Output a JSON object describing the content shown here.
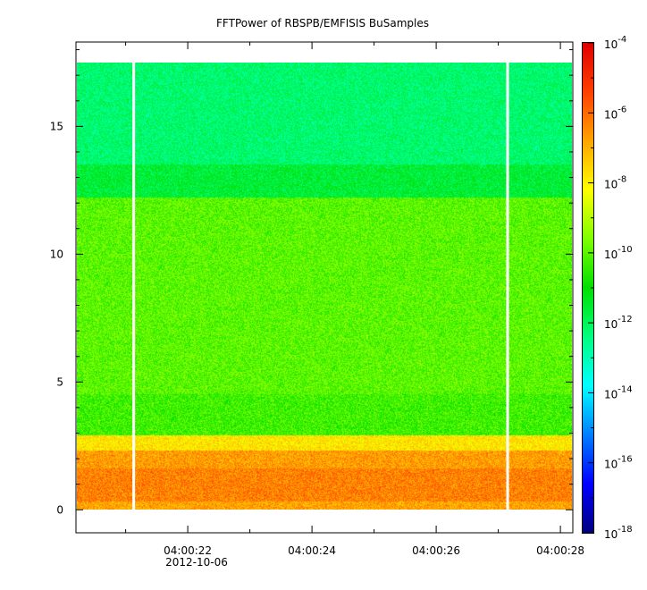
{
  "chart_data": {
    "type": "heatmap",
    "title": "FFTPower of RBSPB/EMFISIS  BuSamples",
    "xlabel": "",
    "ylabel": "",
    "x_ticks": [
      "04:00:22",
      "04:00:24",
      "04:00:26",
      "04:00:28"
    ],
    "x_tick_values": [
      22,
      24,
      26,
      28
    ],
    "x_date_label": "2012-10-06",
    "xlim": [
      20.2,
      28.2
    ],
    "y_ticks": [
      "0",
      "5",
      "10",
      "15"
    ],
    "y_tick_values": [
      0,
      5,
      10,
      15
    ],
    "ylim": [
      -0.9,
      18.3
    ],
    "data_y_range": [
      0,
      17.5
    ],
    "gaps_seconds": [
      21.13,
      27.15
    ],
    "bands": [
      {
        "y_from": 0.0,
        "y_to": 0.3,
        "level": -6.8
      },
      {
        "y_from": 0.3,
        "y_to": 1.6,
        "level": -6.3
      },
      {
        "y_from": 1.6,
        "y_to": 2.3,
        "level": -6.7
      },
      {
        "y_from": 2.3,
        "y_to": 2.9,
        "level": -7.8
      },
      {
        "y_from": 2.9,
        "y_to": 4.5,
        "level": -10.3
      },
      {
        "y_from": 4.5,
        "y_to": 12.2,
        "level": -10.0
      },
      {
        "y_from": 12.2,
        "y_to": 13.5,
        "level": -11.6
      },
      {
        "y_from": 13.5,
        "y_to": 17.5,
        "level": -12.2
      }
    ],
    "colorbar": {
      "scale": "log",
      "range": [
        -18,
        -4
      ],
      "tick_base": "10",
      "tick_exponents": [
        "-4",
        "-6",
        "-8",
        "-10",
        "-12",
        "-14",
        "-16",
        "-18"
      ],
      "tick_values": [
        -4,
        -6,
        -8,
        -10,
        -12,
        -14,
        -16,
        -18
      ],
      "colormap": [
        "#00007f",
        "#0000ff",
        "#007fff",
        "#00ffff",
        "#00ff7f",
        "#00e000",
        "#7fff00",
        "#ffff00",
        "#ffa500",
        "#ff4000",
        "#e00000"
      ]
    },
    "grid": false
  }
}
